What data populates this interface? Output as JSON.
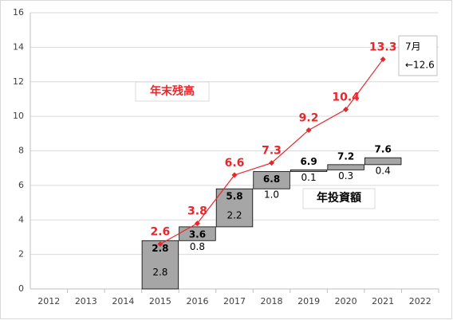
{
  "chart_data": {
    "type": "combo",
    "categories": [
      "2012",
      "2013",
      "2014",
      "2015",
      "2016",
      "2017",
      "2018",
      "2019",
      "2020",
      "2021",
      "2022"
    ],
    "ylim": [
      0,
      16
    ],
    "yticks": [
      0,
      2,
      4,
      6,
      8,
      10,
      12,
      14,
      16
    ],
    "grid": true,
    "series": [
      {
        "name": "年末残高",
        "type": "line",
        "color": "#e8262b",
        "values": [
          null,
          null,
          null,
          2.6,
          3.8,
          6.6,
          7.3,
          9.2,
          10.4,
          13.3,
          null
        ]
      },
      {
        "name": "年投資額",
        "type": "waterfall",
        "color": "#a6a6a6",
        "values": [
          null,
          null,
          null,
          2.8,
          0.8,
          2.2,
          1.0,
          0.1,
          0.3,
          0.4,
          null
        ],
        "value_labels": [
          null,
          null,
          null,
          "2.8",
          "0.8",
          "2.2",
          "1.0",
          "0.1",
          "0.3",
          "0.4",
          null
        ],
        "totals": [
          null,
          null,
          null,
          2.8,
          3.6,
          5.8,
          6.8,
          6.9,
          7.2,
          7.6,
          null
        ]
      }
    ],
    "annotations": [
      "7月",
      "←12.6"
    ]
  }
}
